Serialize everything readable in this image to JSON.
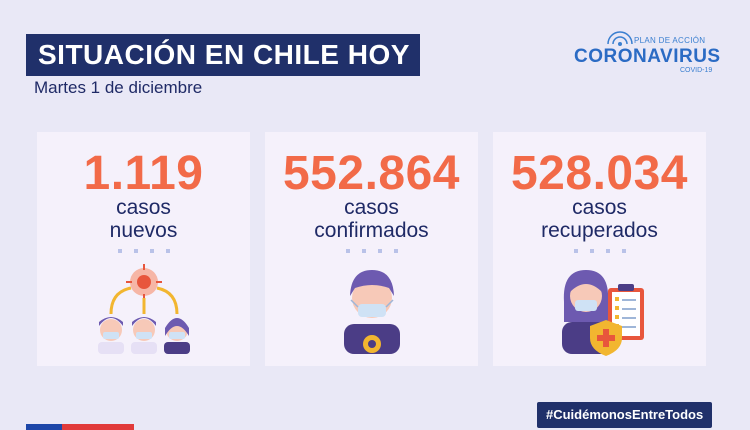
{
  "header": {
    "title": "SITUACIÓN EN CHILE HOY",
    "date": "Martes 1 de diciembre"
  },
  "logo": {
    "line1": "PLAN DE ACCIÓN",
    "line2": "CORONAVIRUS",
    "line3": "COVID-19"
  },
  "cards": [
    {
      "number": "1.119",
      "label1": "casos",
      "label2": "nuevos",
      "illustration": "virus-spread-people-icon"
    },
    {
      "number": "552.864",
      "label1": "casos",
      "label2": "confirmados",
      "illustration": "masked-person-icon"
    },
    {
      "number": "528.034",
      "label1": "casos",
      "label2": "recuperados",
      "illustration": "recovered-person-clipboard-icon"
    }
  ],
  "footer": {
    "hashtag": "#CuidémonosEntreTodos"
  },
  "colors": {
    "navy": "#20306a",
    "accent": "#f26a48",
    "background": "#e9e8f6",
    "card": "#f5f1fb"
  }
}
